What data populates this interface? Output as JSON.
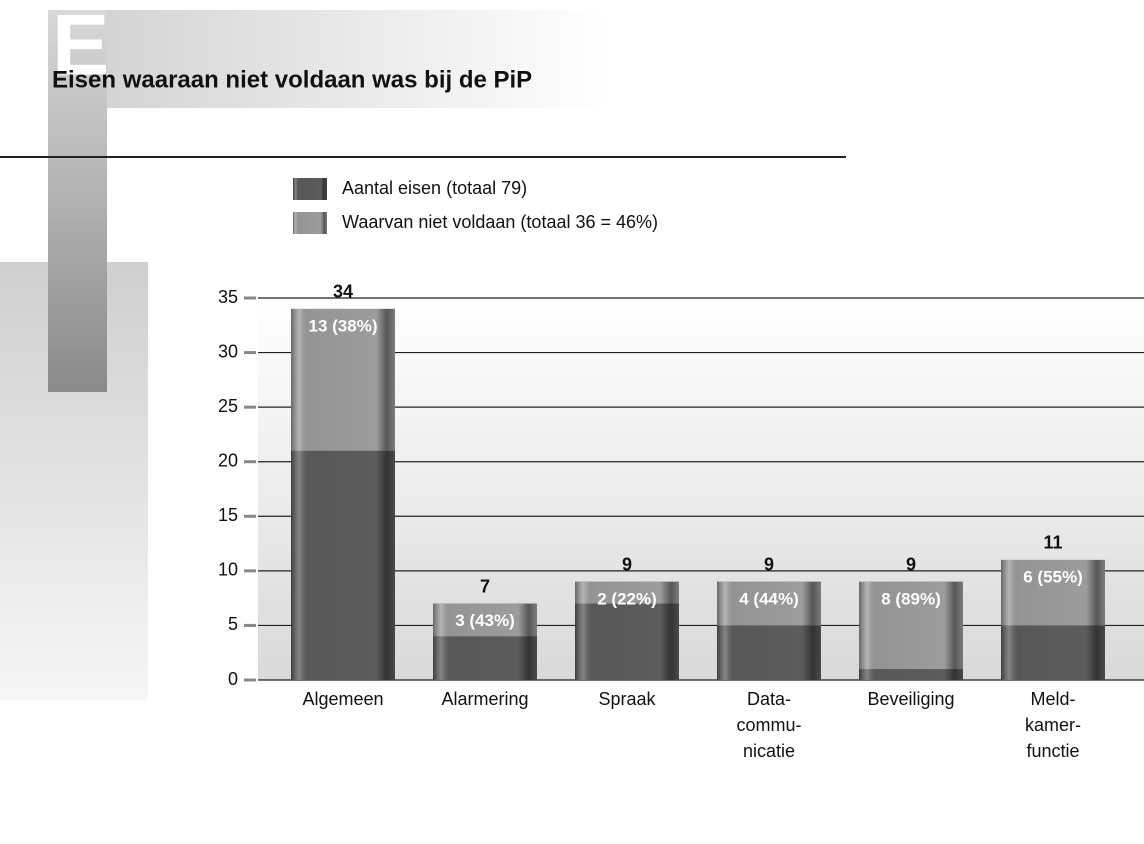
{
  "chart_data": {
    "type": "bar",
    "section_letter": "E",
    "title": "Eisen waaraan niet voldaan was bij de PiP",
    "categories": [
      "Algemeen",
      "Alarmering",
      "Spraak",
      "Data-\ncommu-\nnicatie",
      "Beveiliging",
      "Meld-\nkamer-\nfunctie"
    ],
    "series": [
      {
        "name": "Aantal eisen (totaal 79)",
        "color": "#5c5c5c",
        "values": [
          34,
          7,
          9,
          9,
          9,
          11
        ]
      },
      {
        "name": "Waarvan niet voldaan (totaal 36 = 46%)",
        "color": "#9c9c9c",
        "values": [
          13,
          3,
          2,
          4,
          8,
          6
        ],
        "value_labels": [
          "13 (38%)",
          "3 (43%)",
          "2 (22%)",
          "4 (44%)",
          "8 (89%)",
          "6 (55%)"
        ]
      }
    ],
    "ylim": [
      0,
      35
    ],
    "yticks": [
      0,
      5,
      10,
      15,
      20,
      25,
      30,
      35
    ],
    "grid": true
  }
}
